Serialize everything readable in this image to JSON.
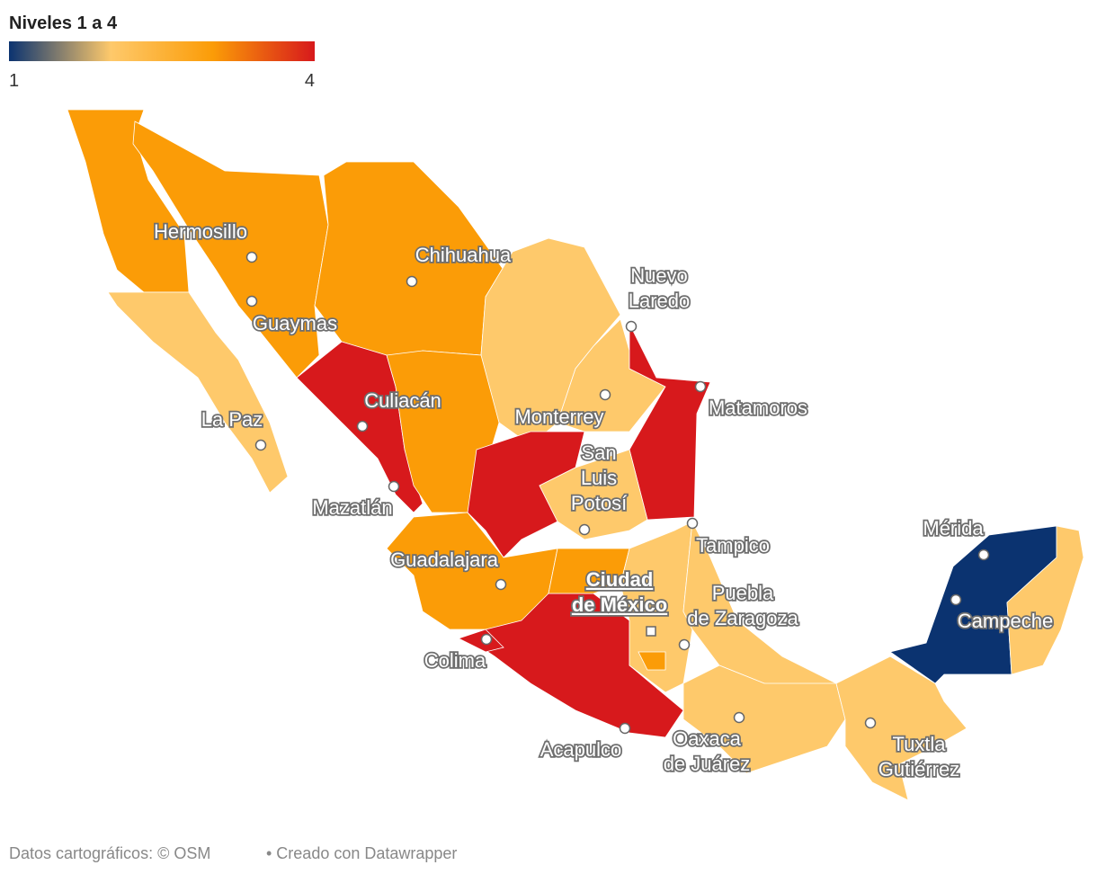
{
  "legend": {
    "title": "Niveles 1 a 4",
    "min": 1,
    "max": 4,
    "stops": [
      {
        "value": 1,
        "color": "#0b3370"
      },
      {
        "value": 2,
        "color": "#fec96b"
      },
      {
        "value": 3,
        "color": "#fb9c07"
      },
      {
        "value": 4,
        "color": "#d7191c"
      }
    ]
  },
  "regions": [
    {
      "level": 3
    },
    {
      "level": 2
    },
    {
      "level": 3
    },
    {
      "level": 3
    },
    {
      "level": 2
    },
    {
      "level": 2
    },
    {
      "level": 4
    },
    {
      "level": 4
    },
    {
      "level": 3
    },
    {
      "level": 4
    },
    {
      "level": 2
    },
    {
      "level": 3
    },
    {
      "level": 4
    },
    {
      "level": 3
    },
    {
      "level": 2
    },
    {
      "level": 2
    },
    {
      "level": 2
    },
    {
      "level": 2
    },
    {
      "level": 1
    },
    {
      "level": 2
    },
    {
      "level": 4
    },
    {
      "level": 3
    }
  ],
  "cities": [
    {
      "lines": [
        "Hermosillo"
      ]
    },
    {
      "lines": [
        "Chihuahua"
      ]
    },
    {
      "lines": [
        "Nuevo",
        "Laredo"
      ]
    },
    {
      "lines": [
        "Guaymas"
      ]
    },
    {
      "lines": [
        "Culiacán"
      ]
    },
    {
      "lines": [
        "La Paz"
      ]
    },
    {
      "lines": [
        "Monterrey"
      ]
    },
    {
      "lines": [
        "Matamoros"
      ]
    },
    {
      "lines": [
        "San",
        "Luis",
        "Potosí"
      ]
    },
    {
      "lines": [
        "Mazatlán"
      ]
    },
    {
      "lines": [
        "Tampico"
      ]
    },
    {
      "lines": [
        "Mérida"
      ]
    },
    {
      "lines": [
        "Guadalajara"
      ]
    },
    {
      "lines": [
        "Ciudad",
        "de México"
      ],
      "capital": true
    },
    {
      "lines": [
        "Puebla",
        "de Zaragoza"
      ]
    },
    {
      "lines": [
        "Campeche"
      ]
    },
    {
      "lines": [
        "Colima"
      ]
    },
    {
      "lines": [
        "Acapulco"
      ]
    },
    {
      "lines": [
        "Oaxaca",
        "de Juárez"
      ]
    },
    {
      "lines": [
        "Tuxtla",
        "Gutiérrez"
      ]
    }
  ],
  "footer": {
    "source": "Datos cartográficos: © OSM",
    "credit": "• Creado con Datawrapper"
  }
}
